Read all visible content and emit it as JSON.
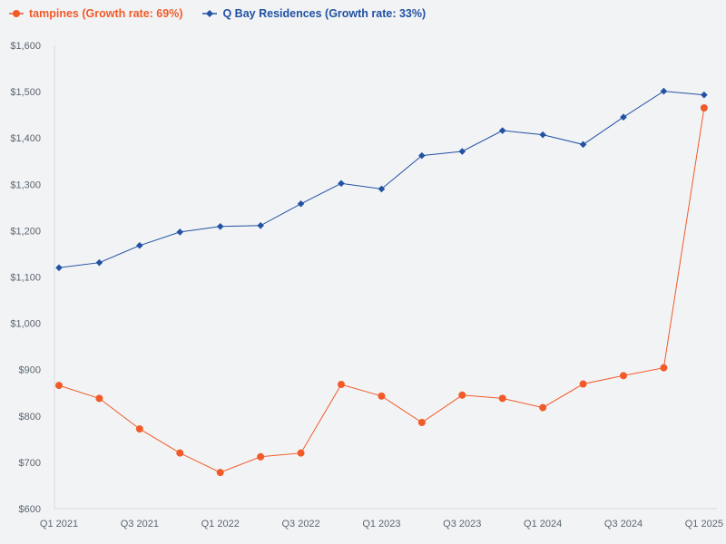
{
  "chart_data": {
    "type": "line",
    "title": "",
    "xlabel": "",
    "ylabel": "",
    "categories": [
      "Q1 2021",
      "Q2 2021",
      "Q3 2021",
      "Q4 2021",
      "Q1 2022",
      "Q2 2022",
      "Q3 2022",
      "Q4 2022",
      "Q1 2023",
      "Q2 2023",
      "Q3 2023",
      "Q4 2023",
      "Q1 2024",
      "Q2 2024",
      "Q3 2024",
      "Q4 2024",
      "Q1 2025"
    ],
    "x_tick_labels": [
      "Q1 2021",
      "Q3 2021",
      "Q1 2022",
      "Q3 2022",
      "Q1 2023",
      "Q3 2023",
      "Q1 2024",
      "Q3 2024",
      "Q1 2025"
    ],
    "y_tick_labels": [
      "$600",
      "$700",
      "$800",
      "$900",
      "$1,000",
      "$1,100",
      "$1,200",
      "$1,300",
      "$1,400",
      "$1,500",
      "$1,600"
    ],
    "ylim": [
      600,
      1600
    ],
    "y_ticks": [
      600,
      700,
      800,
      900,
      1000,
      1100,
      1200,
      1300,
      1400,
      1500,
      1600
    ],
    "grid": false,
    "legend_position": "top-left",
    "series": [
      {
        "name": "tampines (Growth rate: 69%)",
        "color": "#f15a29",
        "marker": "circle",
        "values": [
          866,
          838,
          772,
          720,
          678,
          712,
          720,
          868,
          843,
          786,
          845,
          838,
          818,
          869,
          887,
          904,
          1465
        ]
      },
      {
        "name": "Q Bay Residences (Growth rate: 33%)",
        "color": "#2152a3",
        "marker": "diamond",
        "values": [
          1120,
          1131,
          1168,
          1197,
          1209,
          1211,
          1258,
          1302,
          1290,
          1362,
          1371,
          1416,
          1407,
          1386,
          1445,
          1501,
          1493
        ]
      }
    ]
  }
}
